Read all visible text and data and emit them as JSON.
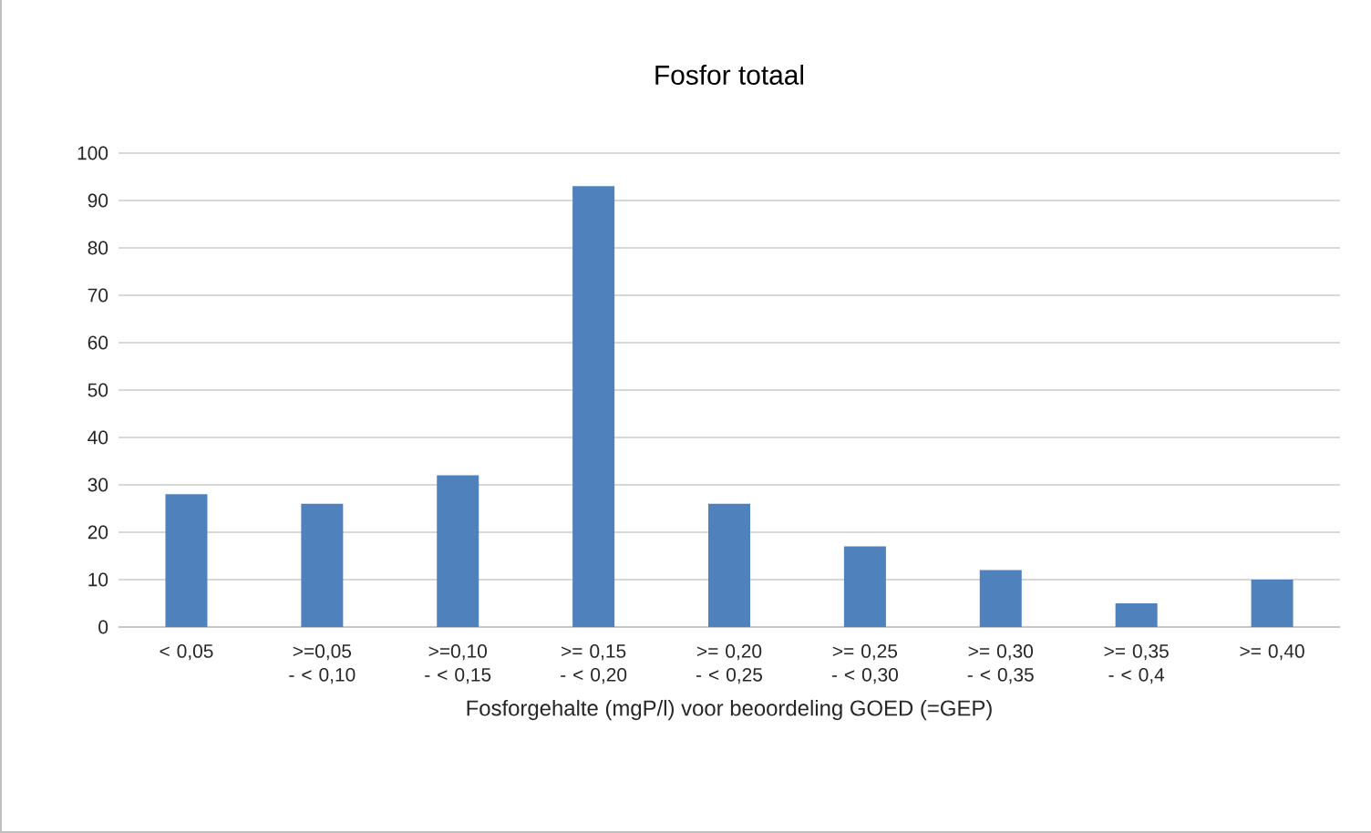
{
  "chart_data": {
    "type": "bar",
    "title": "Fosfor totaal",
    "xlabel": "Fosforgehalte (mgP/l) voor beoordeling GOED (=GEP)",
    "categories": [
      "< 0,05",
      ">=0,05 - < 0,10",
      ">=0,10 - < 0,15",
      ">= 0,15 - < 0,20",
      ">= 0,20 - < 0,25",
      ">= 0,25 - < 0,30",
      ">= 0,30 - < 0,35",
      ">= 0,35 - < 0,4",
      ">= 0,40"
    ],
    "values": [
      28,
      26,
      32,
      93,
      26,
      17,
      12,
      5,
      10
    ],
    "color": "#4f81bd",
    "ylim": [
      0,
      100
    ],
    "yticks": [
      0,
      10,
      20,
      30,
      40,
      50,
      60,
      70,
      80,
      90,
      100
    ],
    "grid": "y"
  }
}
